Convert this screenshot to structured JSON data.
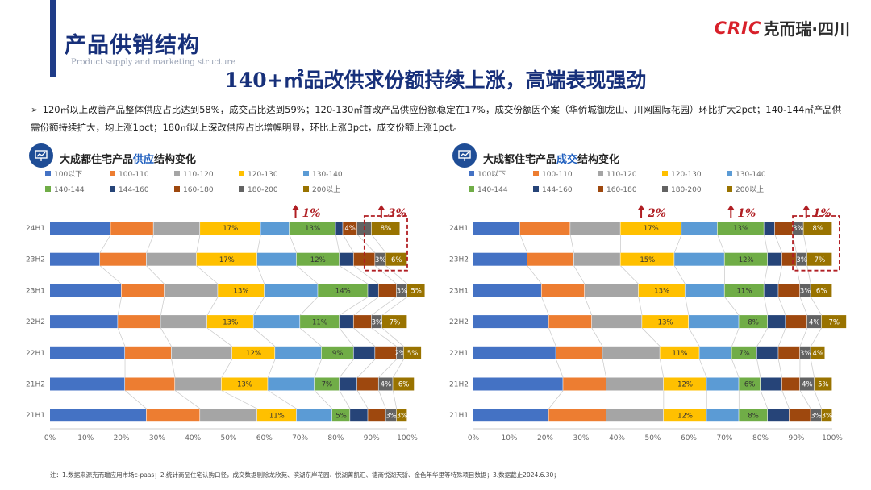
{
  "header": {
    "page_title": "产品供销结构",
    "page_subtitle": "Product supply and marketing structure",
    "logo_text": "CRIC",
    "logo_cn": "克而瑞·四川",
    "headline": "140+㎡品改供求份额持续上涨，高端表现强劲",
    "bullet": "120㎡以上改善产品整体供应占比达到58%，成交占比达到59%；120-130㎡首改产品供应份额稳定在17%，成交份额因个案（华侨城御龙山、川网国际花园）环比扩大2pct；140-144㎡产品供需份额持续扩大，均上涨1pct；180㎡以上深改供应占比增幅明显，环比上涨3pct，成交份额上涨1pct。"
  },
  "colors": [
    "#4472c4",
    "#ed7d31",
    "#a5a5a5",
    "#ffc000",
    "#5b9bd5",
    "#70ad47",
    "#264478",
    "#9e480e",
    "#636363",
    "#997300"
  ],
  "chart_data": [
    {
      "type": "bar",
      "title": "大成都住宅产品供应结构变化",
      "title_plain": "大成都住宅产品",
      "title_hl": "供应",
      "title_tail": "结构变化",
      "legend": [
        "100以下",
        "100-110",
        "110-120",
        "120-130",
        "130-140",
        "140-144",
        "144-160",
        "160-180",
        "180-200",
        "200以上"
      ],
      "categories": [
        "24H1",
        "23H2",
        "23H1",
        "22H2",
        "22H1",
        "21H2",
        "21H1"
      ],
      "xlim": [
        0,
        100
      ],
      "xticks": [
        "0%",
        "10%",
        "20%",
        "30%",
        "40%",
        "50%",
        "60%",
        "70%",
        "80%",
        "90%",
        "100%"
      ],
      "series_values": [
        [
          17,
          12,
          13,
          17,
          8,
          13,
          2,
          4,
          4,
          8
        ],
        [
          14,
          13,
          14,
          17,
          11,
          12,
          4,
          6,
          3,
          6
        ],
        [
          20,
          12,
          15,
          13,
          15,
          14,
          3,
          5,
          3,
          5
        ],
        [
          19,
          12,
          13,
          13,
          13,
          11,
          4,
          5,
          3,
          7
        ],
        [
          21,
          13,
          17,
          12,
          13,
          9,
          6,
          6,
          2,
          5
        ],
        [
          21,
          14,
          13,
          13,
          13,
          7,
          5,
          6,
          4,
          6
        ],
        [
          27,
          15,
          16,
          11,
          10,
          5,
          5,
          5,
          3,
          3
        ]
      ],
      "data_labels": [
        [
          "",
          "",
          "",
          "17%",
          "",
          "13%",
          "",
          "4%",
          "",
          "8%"
        ],
        [
          "",
          "",
          "",
          "17%",
          "",
          "12%",
          "",
          "",
          "3%",
          "6%"
        ],
        [
          "",
          "",
          "",
          "13%",
          "",
          "14%",
          "",
          "",
          "3%",
          "5%"
        ],
        [
          "",
          "",
          "",
          "13%",
          "",
          "11%",
          "",
          "",
          "3%",
          "7%"
        ],
        [
          "",
          "",
          "",
          "12%",
          "",
          "9%",
          "",
          "",
          "2%",
          "5%"
        ],
        [
          "",
          "",
          "",
          "13%",
          "",
          "7%",
          "",
          "",
          "4%",
          "6%"
        ],
        [
          "",
          "",
          "",
          "11%",
          "",
          "5%",
          "",
          "",
          "3%",
          "3%"
        ]
      ],
      "annotations": [
        {
          "text": "1%",
          "x": 71
        },
        {
          "text": "3%",
          "x": 95
        }
      ],
      "highlight_box": {
        "from": 88,
        "to": 100,
        "rows": [
          0,
          1
        ]
      }
    },
    {
      "type": "bar",
      "title": "大成都住宅产品成交结构变化",
      "title_plain": "大成都住宅产品",
      "title_hl": "成交",
      "title_tail": "结构变化",
      "legend": [
        "100以下",
        "100-110",
        "110-120",
        "120-130",
        "130-140",
        "140-144",
        "144-160",
        "160-180",
        "180-200",
        "200以上"
      ],
      "categories": [
        "24H1",
        "23H2",
        "23H1",
        "22H2",
        "22H1",
        "21H2",
        "21H1"
      ],
      "xlim": [
        0,
        100
      ],
      "xticks": [
        "0%",
        "10%",
        "20%",
        "30%",
        "40%",
        "50%",
        "60%",
        "70%",
        "80%",
        "90%",
        "100%"
      ],
      "series_values": [
        [
          13,
          14,
          14,
          17,
          10,
          13,
          3,
          5,
          3,
          8
        ],
        [
          15,
          13,
          13,
          15,
          14,
          12,
          4,
          4,
          3,
          7
        ],
        [
          19,
          12,
          15,
          13,
          11,
          11,
          4,
          6,
          3,
          6
        ],
        [
          21,
          12,
          14,
          13,
          14,
          8,
          5,
          6,
          4,
          7
        ],
        [
          23,
          13,
          16,
          11,
          9,
          7,
          6,
          6,
          3,
          4
        ],
        [
          25,
          12,
          16,
          12,
          9,
          6,
          6,
          5,
          4,
          5
        ],
        [
          21,
          16,
          16,
          12,
          9,
          8,
          6,
          6,
          3,
          3
        ]
      ],
      "data_labels": [
        [
          "",
          "",
          "",
          "17%",
          "",
          "13%",
          "",
          "",
          "3%",
          "8%"
        ],
        [
          "",
          "",
          "",
          "15%",
          "",
          "12%",
          "",
          "",
          "3%",
          "7%"
        ],
        [
          "",
          "",
          "",
          "13%",
          "",
          "11%",
          "",
          "",
          "3%",
          "6%"
        ],
        [
          "",
          "",
          "",
          "13%",
          "",
          "8%",
          "",
          "",
          "4%",
          "7%"
        ],
        [
          "",
          "",
          "",
          "11%",
          "",
          "7%",
          "",
          "",
          "3%",
          "4%"
        ],
        [
          "",
          "",
          "",
          "12%",
          "",
          "6%",
          "",
          "",
          "4%",
          "5%"
        ],
        [
          "",
          "",
          "",
          "12%",
          "",
          "8%",
          "",
          "",
          "3%",
          "3%"
        ]
      ],
      "annotations": [
        {
          "text": "2%",
          "x": 49
        },
        {
          "text": "1%",
          "x": 74
        },
        {
          "text": "1%",
          "x": 95
        }
      ],
      "highlight_box": {
        "from": 89,
        "to": 102,
        "rows": [
          0,
          1
        ]
      }
    }
  ],
  "footnote": "注：1.数据来源克而瑞应用市场c-paas；2.统计商品住宅认购口径，成交数据剔除龙欣苑、滨湖东岸花园、悦湖菁凯汇、德商悦湖天骄、金色年华里等特殊项目数据；3.数据截止2024.6.30；"
}
